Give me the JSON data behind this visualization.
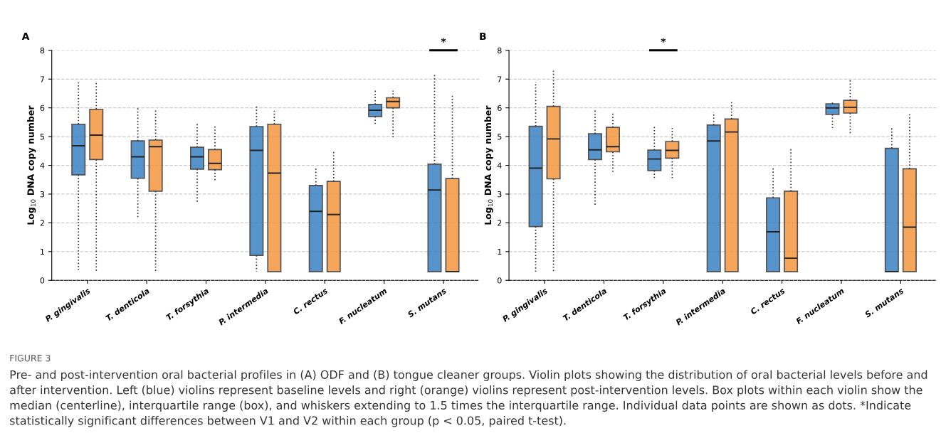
{
  "chart_data": [
    {
      "type": "box",
      "title": "A",
      "ylabel": "Log$_{10}$ DNA copy number",
      "categories": [
        "P. gingivalis",
        "T. denticola",
        "T. forsythia",
        "P. intermedia",
        "C. rectus",
        "F. nucleatum",
        "S. mutans"
      ],
      "ylim": [
        0,
        8
      ],
      "yticks": [
        0,
        1,
        2,
        3,
        4,
        5,
        6,
        7,
        8
      ],
      "grid": "y",
      "series": [
        {
          "color": "#3a82c4",
          "boxes": [
            {
              "low": 0.3,
              "q1": 3.67,
              "median": 4.68,
              "q3": 5.43,
              "high": 6.9
            },
            {
              "low": 2.2,
              "q1": 3.55,
              "median": 4.3,
              "q3": 4.85,
              "high": 6.05
            },
            {
              "low": 2.7,
              "q1": 3.87,
              "median": 4.3,
              "q3": 4.63,
              "high": 5.45
            },
            {
              "low": 0.3,
              "q1": 0.87,
              "median": 4.52,
              "q3": 5.35,
              "high": 6.1
            },
            {
              "low": 0.3,
              "q1": 0.3,
              "median": 2.4,
              "q3": 3.3,
              "high": 3.9
            },
            {
              "low": 5.4,
              "q1": 5.7,
              "median": 5.92,
              "q3": 6.12,
              "high": 6.6
            },
            {
              "low": 0.3,
              "q1": 0.3,
              "median": 3.14,
              "q3": 4.04,
              "high": 7.15
            }
          ]
        },
        {
          "color": "#f5973e",
          "boxes": [
            {
              "low": 0.3,
              "q1": 4.2,
              "median": 5.05,
              "q3": 5.95,
              "high": 6.9
            },
            {
              "low": 0.3,
              "q1": 3.1,
              "median": 4.65,
              "q3": 4.88,
              "high": 5.95
            },
            {
              "low": 3.45,
              "q1": 3.85,
              "median": 4.07,
              "q3": 4.55,
              "high": 5.4
            },
            {
              "low": 0.3,
              "q1": 0.3,
              "median": 3.73,
              "q3": 5.43,
              "high": 5.9
            },
            {
              "low": 0.3,
              "q1": 0.3,
              "median": 2.29,
              "q3": 3.44,
              "high": 4.5
            },
            {
              "low": 4.95,
              "q1": 6.0,
              "median": 6.22,
              "q3": 6.35,
              "high": 6.6
            },
            {
              "low": 0.3,
              "q1": 0.3,
              "median": 0.3,
              "q3": 3.54,
              "high": 6.45
            }
          ]
        }
      ],
      "annotations": [
        "*",
        "FIGURE 3",
        "Pre- and post-intervention oral bacterial profiles in (A) ODF and (B) tongue cleaner groups. Violin plots showing the distribution of oral bacterial levels before and after intervention. Left (blue) violins represent baseline levels and right (orange) violins represent post-intervention levels. Box plots within each violin show the median (centerline), interquartile range (box), and whiskers extending to 1.5 times the interquartile range. Individual data points are shown as dots. *Indicate statistically significant differences between V1 and V2 within each group (p < 0.05, paired t-test)."
      ]
    },
    {
      "type": "box",
      "title": "B",
      "ylabel": "Log$_{10}$ DNA copy number",
      "categories": [
        "P. gingivalis",
        "T. denticola",
        "T. forsythia",
        "P. intermedia",
        "C. rectus",
        "F. nucleatum",
        "S. mutans"
      ],
      "ylim": [
        0,
        8
      ],
      "yticks": [
        0,
        1,
        2,
        3,
        4,
        5,
        6,
        7,
        8
      ],
      "grid": "y",
      "series": [
        {
          "color": "#3a82c4",
          "boxes": [
            {
              "low": 0.3,
              "q1": 1.87,
              "median": 3.9,
              "q3": 5.36,
              "high": 6.9
            },
            {
              "low": 2.6,
              "q1": 4.2,
              "median": 4.54,
              "q3": 5.1,
              "high": 5.95
            },
            {
              "low": 3.55,
              "q1": 3.82,
              "median": 4.22,
              "q3": 4.53,
              "high": 5.4
            },
            {
              "low": 0.3,
              "q1": 0.3,
              "median": 4.85,
              "q3": 5.4,
              "high": 5.85
            },
            {
              "low": 0.3,
              "q1": 0.3,
              "median": 1.69,
              "q3": 2.87,
              "high": 3.9
            },
            {
              "low": 5.3,
              "q1": 5.77,
              "median": 6.0,
              "q3": 6.14,
              "high": 6.2
            },
            {
              "low": 0.3,
              "q1": 0.3,
              "median": 0.3,
              "q3": 4.59,
              "high": 5.3
            }
          ]
        },
        {
          "color": "#f5973e",
          "boxes": [
            {
              "low": 0.3,
              "q1": 3.53,
              "median": 4.92,
              "q3": 6.05,
              "high": 7.3
            },
            {
              "low": 3.75,
              "q1": 4.47,
              "median": 4.65,
              "q3": 5.32,
              "high": 5.8
            },
            {
              "low": 3.55,
              "q1": 4.25,
              "median": 4.52,
              "q3": 4.83,
              "high": 5.3
            },
            {
              "low": 0.3,
              "q1": 0.3,
              "median": 5.16,
              "q3": 5.61,
              "high": 6.2
            },
            {
              "low": 0.3,
              "q1": 0.3,
              "median": 0.77,
              "q3": 3.1,
              "high": 4.6
            },
            {
              "low": 5.1,
              "q1": 5.82,
              "median": 6.02,
              "q3": 6.26,
              "high": 7.0
            },
            {
              "low": 0.3,
              "q1": 0.3,
              "median": 1.85,
              "q3": 3.88,
              "high": 5.8
            }
          ]
        }
      ],
      "annotations": [
        "*"
      ]
    }
  ]
}
